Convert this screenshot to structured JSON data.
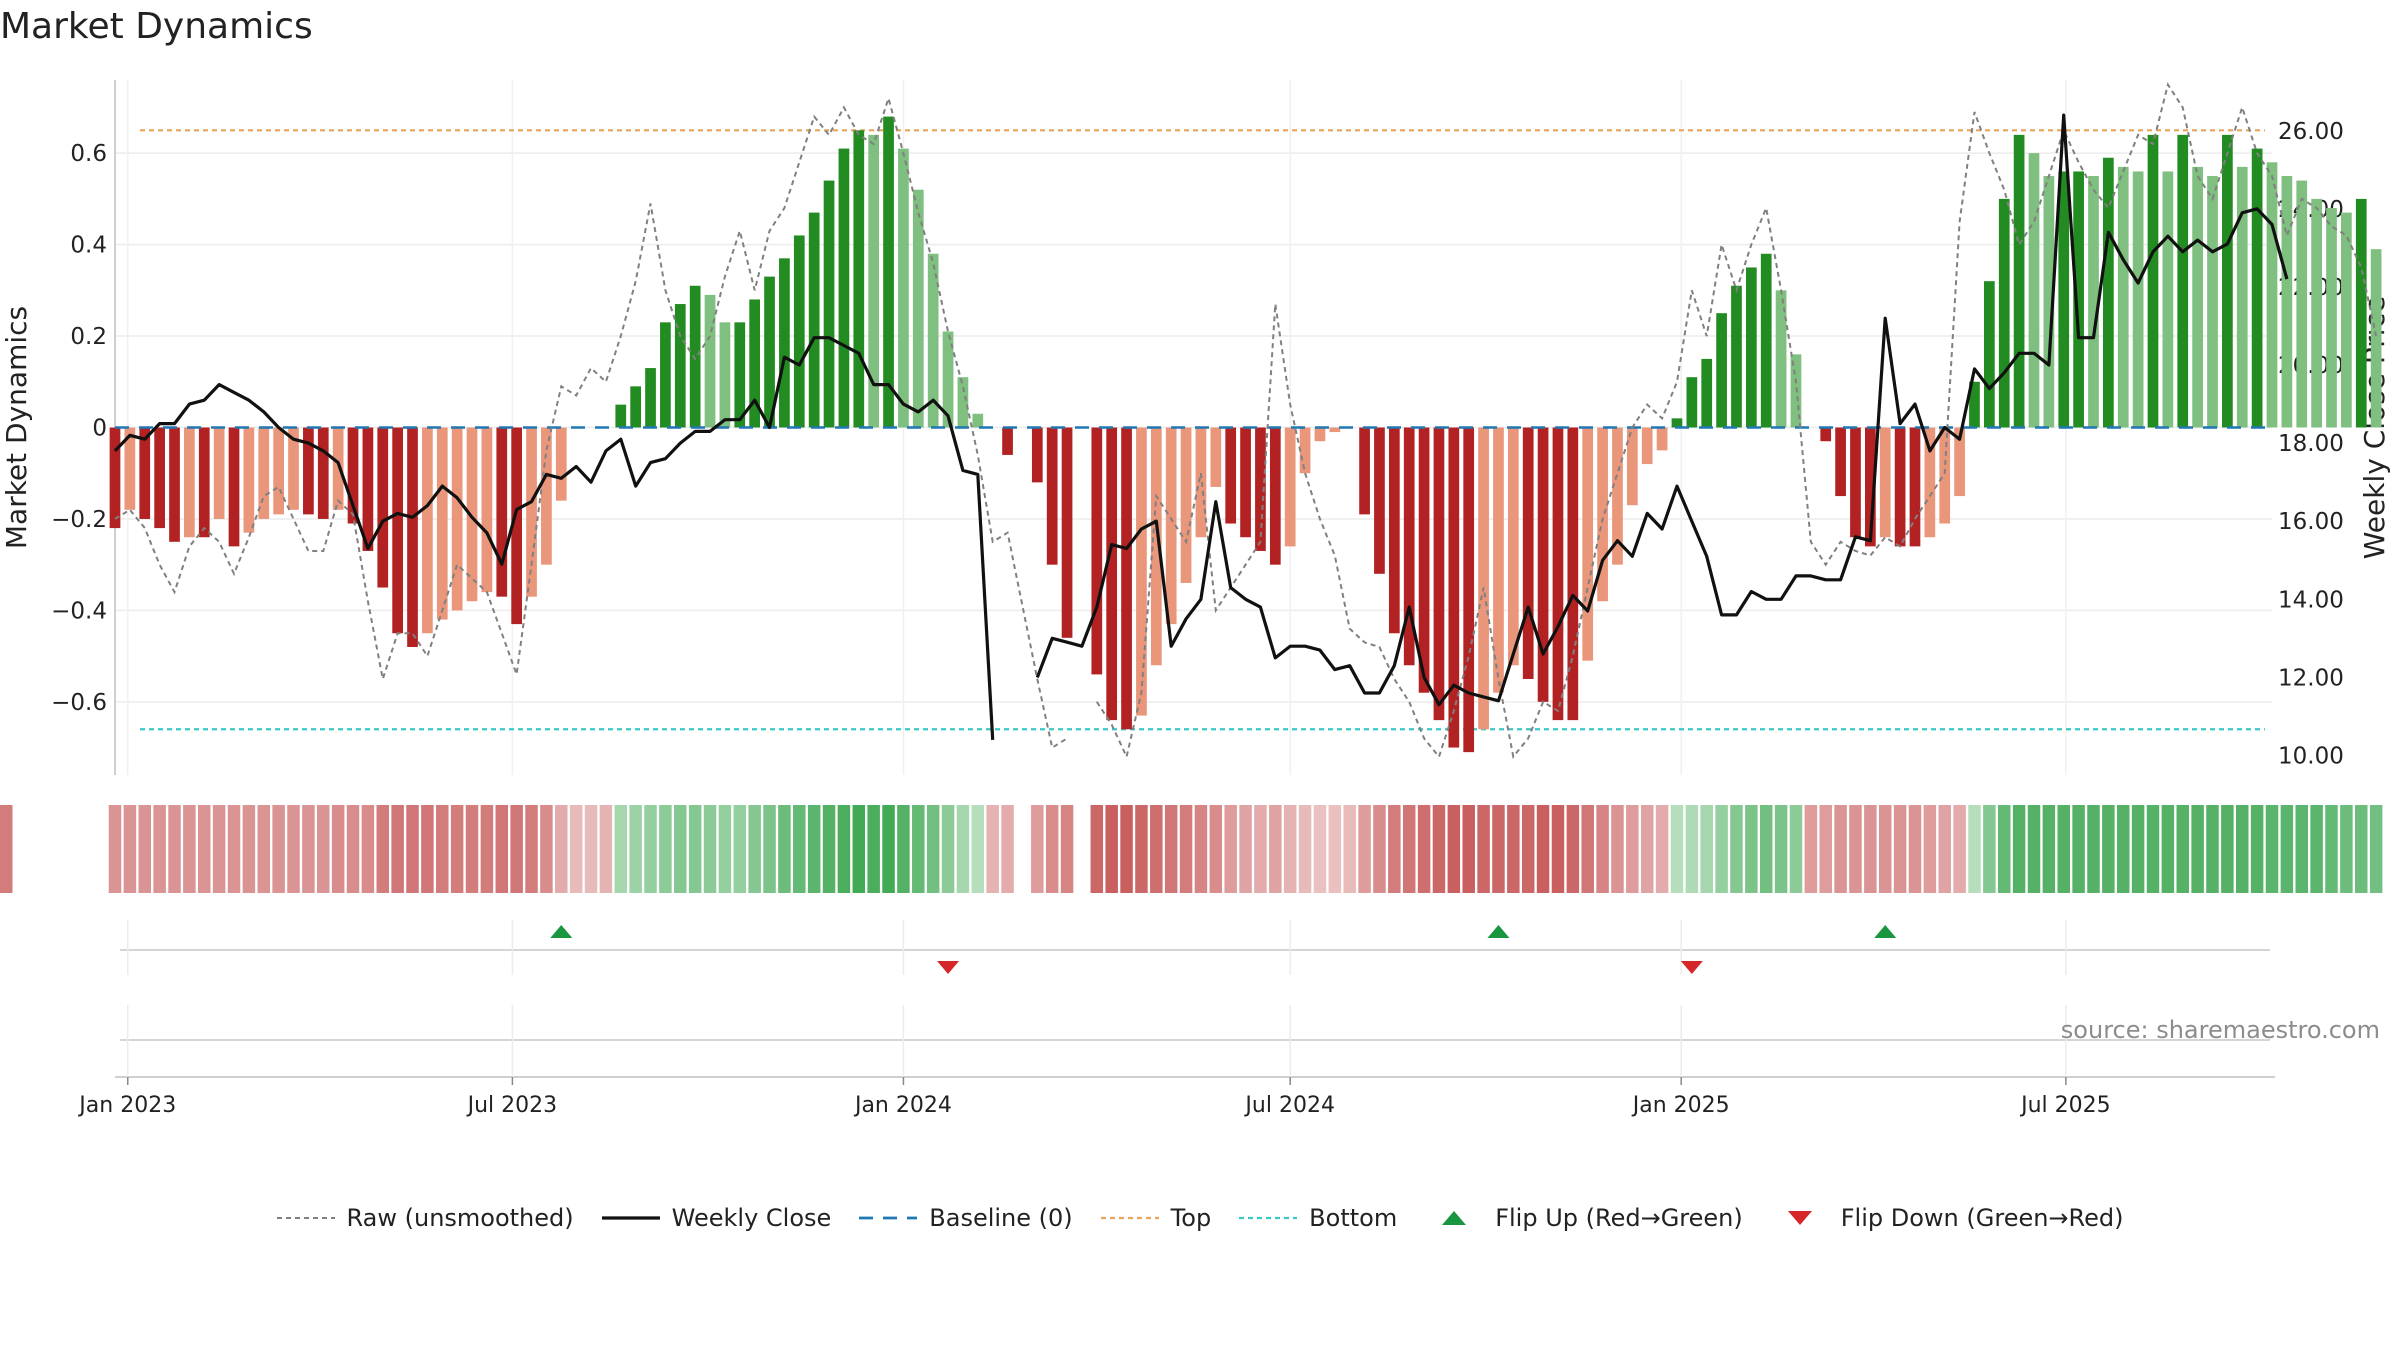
{
  "title": "Market Dynamics",
  "source": "source: sharemaestro.com",
  "colors": {
    "strong_green": "#228b22",
    "light_green": "#7fbf7f",
    "strong_red": "#b22222",
    "light_red": "#e9967a",
    "raw": "#808080",
    "close": "#111111",
    "baseline": "#1f77b4",
    "top": "#e9a45a",
    "bottom": "#3cc8c8",
    "flip_up": "#1a9641",
    "flip_down": "#d62728"
  },
  "chart_data": {
    "type": "bar",
    "title": "Market Dynamics",
    "ylabel": "Market Dynamics",
    "y2label": "Weekly Close Price",
    "ylim": [
      -0.76,
      0.76
    ],
    "y2lim": [
      9.5,
      27.3
    ],
    "yticks": [
      -0.6,
      -0.4,
      -0.2,
      0,
      0.2,
      0.4,
      0.6
    ],
    "yticklabels": [
      "−0.6",
      "−0.4",
      "−0.2",
      "0",
      "0.2",
      "0.4",
      "0.6"
    ],
    "y2ticks": [
      10,
      12,
      14,
      16,
      18,
      20,
      22,
      24,
      26
    ],
    "y2ticklabels": [
      "10.00",
      "12.00",
      "14.00",
      "16.00",
      "18.00",
      "20.00",
      "22.00",
      "24.00",
      "26.00"
    ],
    "xlim": [
      "2022-12-26",
      "2025-10-06"
    ],
    "xticks": [
      "2023-01-01",
      "2023-07-01",
      "2024-01-01",
      "2024-07-01",
      "2025-01-01",
      "2025-07-01"
    ],
    "xticklabels": [
      "Jan 2023",
      "Jul 2023",
      "Jan 2024",
      "Jul 2024",
      "Jan 2025",
      "Jul 2025"
    ],
    "top_level": 0.65,
    "bottom_level": -0.66,
    "baseline_level": 0,
    "start_date": "2022-12-26",
    "missing_week": "2024-02-26",
    "dynamics": [
      -0.22,
      -0.18,
      -0.2,
      -0.22,
      -0.25,
      -0.24,
      -0.24,
      -0.2,
      -0.26,
      -0.23,
      -0.2,
      -0.19,
      -0.18,
      -0.19,
      -0.2,
      -0.18,
      -0.21,
      -0.27,
      -0.35,
      -0.45,
      -0.48,
      -0.45,
      -0.42,
      -0.4,
      -0.38,
      -0.36,
      -0.37,
      -0.43,
      -0.37,
      -0.3,
      -0.16,
      0,
      0,
      0,
      0.05,
      0.09,
      0.13,
      0.23,
      0.27,
      0.31,
      0.29,
      0.23,
      0.23,
      0.28,
      0.33,
      0.37,
      0.42,
      0.47,
      0.54,
      0.61,
      0.65,
      0.64,
      0.68,
      0.61,
      0.52,
      0.38,
      0.21,
      0.11,
      0.03,
      0,
      -0.06,
      -0.12,
      -0.3,
      -0.46,
      null,
      -0.54,
      -0.64,
      -0.66,
      -0.63,
      -0.52,
      -0.43,
      -0.34,
      -0.24,
      -0.13,
      -0.21,
      -0.24,
      -0.27,
      -0.3,
      -0.26,
      -0.1,
      -0.03,
      -0.01,
      0,
      -0.19,
      -0.32,
      -0.45,
      -0.52,
      -0.58,
      -0.64,
      -0.7,
      -0.71,
      -0.66,
      -0.58,
      -0.52,
      -0.55,
      -0.6,
      -0.64,
      -0.64,
      -0.51,
      -0.38,
      -0.3,
      -0.17,
      -0.08,
      -0.05,
      0.02,
      0.11,
      0.15,
      0.25,
      0.31,
      0.35,
      0.38,
      0.3,
      0.16,
      0,
      -0.03,
      -0.15,
      -0.24,
      -0.26,
      -0.24,
      -0.26,
      -0.26,
      -0.24,
      -0.21,
      -0.15,
      0.1,
      0.32,
      0.5,
      0.64,
      0.6,
      0.55,
      0.56,
      0.56,
      0.55,
      0.59,
      0.57,
      0.56,
      0.64,
      0.56,
      0.64,
      0.57,
      0.55,
      0.64,
      0.57,
      0.61,
      0.58,
      0.55,
      0.54,
      0.5,
      0.48,
      0.47,
      0.5,
      0.39
    ],
    "raw": [
      -0.2,
      -0.18,
      -0.22,
      -0.3,
      -0.36,
      -0.26,
      -0.22,
      -0.25,
      -0.32,
      -0.24,
      -0.15,
      -0.13,
      -0.2,
      -0.27,
      -0.27,
      -0.16,
      -0.19,
      -0.38,
      -0.55,
      -0.45,
      -0.45,
      -0.5,
      -0.4,
      -0.3,
      -0.33,
      -0.36,
      -0.45,
      -0.54,
      -0.3,
      -0.05,
      0.09,
      0.07,
      0.13,
      0.1,
      0.2,
      0.32,
      0.49,
      0.3,
      0.2,
      0.15,
      0.2,
      0.33,
      0.43,
      0.3,
      0.43,
      0.48,
      0.58,
      0.68,
      0.64,
      0.7,
      0.64,
      0.62,
      0.72,
      0.6,
      0.47,
      0.36,
      0.21,
      0.09,
      -0.06,
      -0.25,
      -0.23,
      -0.55,
      -0.7,
      -0.68,
      null,
      -0.6,
      -0.65,
      -0.72,
      -0.58,
      -0.15,
      -0.2,
      -0.25,
      -0.1,
      -0.4,
      -0.35,
      -0.3,
      -0.25,
      0.27,
      0.05,
      -0.1,
      -0.2,
      -0.28,
      -0.44,
      -0.47,
      -0.48,
      -0.55,
      -0.6,
      -0.68,
      -0.72,
      -0.62,
      -0.5,
      -0.35,
      -0.55,
      -0.72,
      -0.68,
      -0.6,
      -0.62,
      -0.5,
      -0.35,
      -0.2,
      -0.1,
      0,
      0.05,
      0.02,
      0.1,
      0.3,
      0.2,
      0.4,
      0.3,
      0.4,
      0.48,
      0.3,
      0.1,
      -0.25,
      -0.3,
      -0.25,
      -0.27,
      -0.28,
      -0.24,
      -0.26,
      -0.2,
      -0.15,
      -0.1,
      0.45,
      0.69,
      0.6,
      0.52,
      0.4,
      0.45,
      0.55,
      0.65,
      0.58,
      0.52,
      0.48,
      0.56,
      0.64,
      0.62,
      0.75,
      0.7,
      0.55,
      0.5,
      0.6,
      0.7,
      0.6,
      0.55,
      0.42,
      0.5,
      0.48,
      0.44,
      0.42,
      0.35,
      0.2
    ],
    "close": [
      17.8,
      18.2,
      18.1,
      18.5,
      18.5,
      19.0,
      19.1,
      19.5,
      19.3,
      19.1,
      18.8,
      18.4,
      18.1,
      18.0,
      17.8,
      17.5,
      16.4,
      15.3,
      16.0,
      16.2,
      16.1,
      16.4,
      16.9,
      16.6,
      16.1,
      15.7,
      14.9,
      16.3,
      16.5,
      17.2,
      17.1,
      17.4,
      17.0,
      17.8,
      18.1,
      16.9,
      17.5,
      17.6,
      18.0,
      18.3,
      18.3,
      18.6,
      18.6,
      19.1,
      18.4,
      20.2,
      20.0,
      20.7,
      20.7,
      20.5,
      20.3,
      19.5,
      19.5,
      19.0,
      18.8,
      19.1,
      18.7,
      17.3,
      17.2,
      10.4,
      null,
      12.0,
      13.0,
      12.9,
      12.8,
      13.8,
      15.4,
      15.3,
      15.8,
      16.0,
      12.8,
      13.5,
      14.0,
      16.5,
      14.3,
      14.0,
      13.8,
      12.5,
      12.8,
      12.8,
      12.7,
      12.2,
      12.3,
      11.6,
      11.6,
      12.3,
      13.8,
      12.0,
      11.3,
      11.8,
      11.6,
      11.5,
      11.4,
      12.6,
      13.8,
      12.6,
      13.3,
      14.1,
      13.7,
      15.0,
      15.5,
      15.1,
      16.2,
      15.8,
      16.9,
      16.0,
      15.1,
      13.6,
      13.6,
      14.2,
      14.0,
      14.0,
      14.6,
      14.6,
      14.5,
      14.5,
      15.6,
      15.5,
      21.2,
      18.5,
      19.0,
      17.8,
      18.4,
      18.1,
      19.9,
      19.4,
      19.8,
      20.3,
      20.3,
      20.0,
      26.4,
      20.7,
      20.7,
      23.4,
      22.7,
      22.1,
      22.9,
      23.3,
      22.9,
      23.2,
      22.9,
      23.1,
      23.9,
      24.0,
      23.6,
      22.2
    ],
    "regime_strength": [
      0.55,
      0.55,
      0.55,
      0.55,
      0.55,
      0.55,
      0.55,
      0.55,
      0.55,
      0.55,
      0.55,
      0.55,
      0.55,
      0.55,
      0.55,
      0.6,
      0.6,
      0.6,
      0.7,
      0.75,
      0.75,
      0.75,
      0.7,
      0.7,
      0.7,
      0.7,
      0.75,
      0.75,
      0.7,
      0.6,
      0.4,
      0.3,
      0.3,
      0.35,
      0.4,
      0.45,
      0.5,
      0.55,
      0.6,
      0.6,
      0.55,
      0.5,
      0.5,
      0.6,
      0.65,
      0.75,
      0.8,
      0.85,
      0.9,
      0.95,
      1.0,
      0.95,
      1.0,
      0.9,
      0.8,
      0.7,
      0.55,
      0.4,
      0.3,
      0.35,
      0.4,
      0.5,
      0.6,
      0.65,
      null,
      0.85,
      0.9,
      0.9,
      0.85,
      0.8,
      0.75,
      0.7,
      0.65,
      0.6,
      0.5,
      0.45,
      0.4,
      0.45,
      0.35,
      0.3,
      0.25,
      0.25,
      0.3,
      0.5,
      0.6,
      0.7,
      0.75,
      0.8,
      0.85,
      0.9,
      0.9,
      0.85,
      0.85,
      0.85,
      0.85,
      0.9,
      0.9,
      0.85,
      0.75,
      0.65,
      0.55,
      0.5,
      0.45,
      0.4,
      0.3,
      0.35,
      0.4,
      0.5,
      0.6,
      0.65,
      0.7,
      0.65,
      0.55,
      0.5,
      0.5,
      0.55,
      0.55,
      0.55,
      0.55,
      0.55,
      0.55,
      0.5,
      0.45,
      0.4,
      0.3,
      0.6,
      0.8,
      0.9,
      0.9,
      0.9,
      0.9,
      0.9,
      0.9,
      0.9,
      0.9,
      0.9,
      0.9,
      0.9,
      0.9,
      0.9,
      0.9,
      0.9,
      0.9,
      0.9,
      0.85,
      0.85,
      0.85,
      0.85,
      0.8,
      0.75,
      0.75,
      0.7,
      0.7
    ],
    "flips": [
      {
        "date": "2023-07-24",
        "type": "up"
      },
      {
        "date": "2024-01-22",
        "type": "down"
      },
      {
        "date": "2024-10-07",
        "type": "up"
      },
      {
        "date": "2025-01-06",
        "type": "down"
      },
      {
        "date": "2025-04-07",
        "type": "up"
      }
    ],
    "legend_placement": "bottom-center",
    "legend": [
      {
        "label": "Raw (unsmoothed)",
        "style": "raw"
      },
      {
        "label": "Weekly Close",
        "style": "close"
      },
      {
        "label": "Baseline (0)",
        "style": "baseline"
      },
      {
        "label": "Top",
        "style": "top"
      },
      {
        "label": "Bottom",
        "style": "bottom"
      },
      {
        "label": "Flip Up (Red→Green)",
        "style": "flip_up"
      },
      {
        "label": "Flip Down (Green→Red)",
        "style": "flip_down"
      }
    ]
  }
}
